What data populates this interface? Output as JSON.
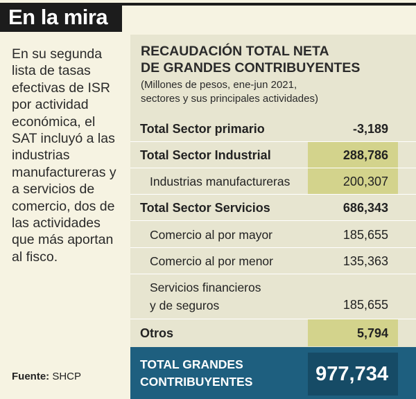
{
  "header": {
    "title": "En la mira"
  },
  "intro_text": "En su segunda lista de tasas efectivas de ISR por actividad económica, el SAT incluyó a las industrias manufactureras y a servicios de comercio, dos de las actividades que más aportan al fisco.",
  "source": {
    "label": "Fuente:",
    "value": "SHCP"
  },
  "table": {
    "title_line1": "RECAUDACIÓN TOTAL NETA",
    "title_line2": "DE GRANDES CONTRIBUYENTES",
    "subtitle_line1": "(Millones de pesos, ene-jun 2021,",
    "subtitle_line2": "sectores y sus principales actividades)",
    "rows": [
      {
        "label": "Total Sector primario",
        "value": "-3,189"
      },
      {
        "label": "Total Sector Industrial",
        "value": "288,786"
      },
      {
        "label": "Industrias manufactureras",
        "value": "200,307"
      },
      {
        "label": "Total Sector Servicios",
        "value": "686,343"
      },
      {
        "label": "Comercio al por mayor",
        "value": "185,655"
      },
      {
        "label": "Comercio al por menor",
        "value": "135,363"
      },
      {
        "label_line1": "Servicios financieros",
        "label_line2": "y de seguros",
        "value": "185,655"
      },
      {
        "label": "Otros",
        "value": "5,794"
      }
    ],
    "total": {
      "label_line1": "TOTAL GRANDES",
      "label_line2": "CONTRIBUYENTES",
      "value": "977,734"
    }
  },
  "colors": {
    "background": "#f6f3e2",
    "panel": "#e7e5d0",
    "highlight": "#d3d38c",
    "total_band": "#1e5f7f",
    "total_value_box": "#164b66",
    "header_bar": "#1c1c1c"
  }
}
